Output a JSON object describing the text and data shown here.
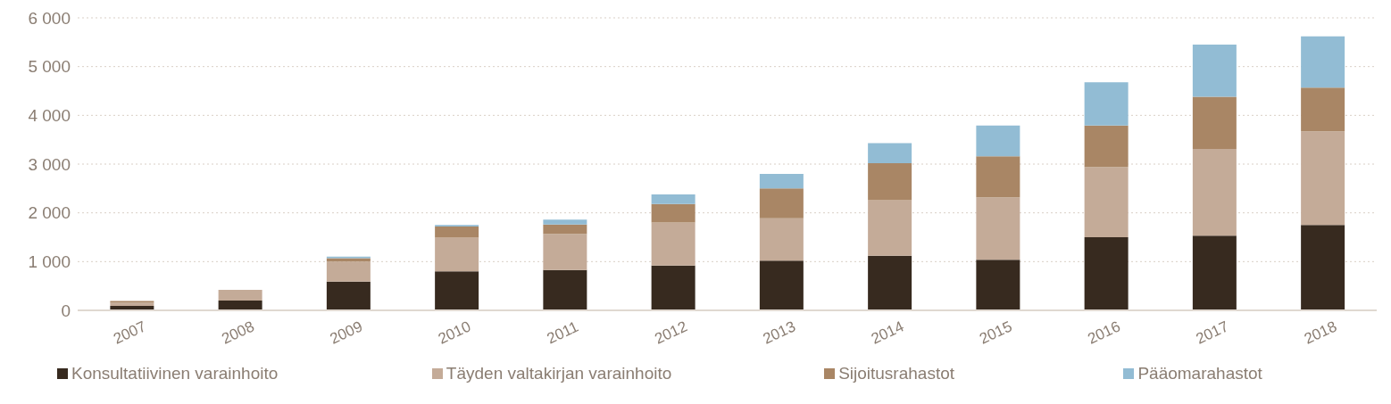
{
  "chart_data": {
    "type": "bar",
    "stacked": true,
    "categories": [
      "2007",
      "2008",
      "2009",
      "2010",
      "2011",
      "2012",
      "2013",
      "2014",
      "2015",
      "2016",
      "2017",
      "2018"
    ],
    "series": [
      {
        "name": "Konsultatiivinen varainhoito",
        "color": "#372a1f",
        "values": [
          90,
          200,
          590,
          800,
          830,
          920,
          1020,
          1120,
          1040,
          1500,
          1530,
          1750
        ]
      },
      {
        "name": "Täyden valtakirjan varainhoito",
        "color": "#c4ab98",
        "values": [
          70,
          220,
          410,
          690,
          740,
          880,
          870,
          1140,
          1280,
          1440,
          1780,
          1920
        ]
      },
      {
        "name": "Sijoitusrahastot",
        "color": "#a98665",
        "values": [
          30,
          0,
          70,
          230,
          190,
          380,
          610,
          760,
          840,
          850,
          1070,
          900
        ]
      },
      {
        "name": "Pääomarahastot",
        "color": "#92bcd4",
        "values": [
          0,
          0,
          30,
          30,
          100,
          200,
          300,
          410,
          630,
          890,
          1070,
          1050
        ]
      }
    ],
    "ylim": [
      0,
      6000
    ],
    "yticks": [
      {
        "value": 0,
        "label": "0"
      },
      {
        "value": 1000,
        "label": "1 000"
      },
      {
        "value": 2000,
        "label": "2 000"
      },
      {
        "value": 3000,
        "label": "3 000"
      },
      {
        "value": 4000,
        "label": "4 000"
      },
      {
        "value": 5000,
        "label": "5 000"
      },
      {
        "value": 6000,
        "label": "6 000"
      }
    ],
    "grid": "y",
    "legend": "bottom"
  }
}
